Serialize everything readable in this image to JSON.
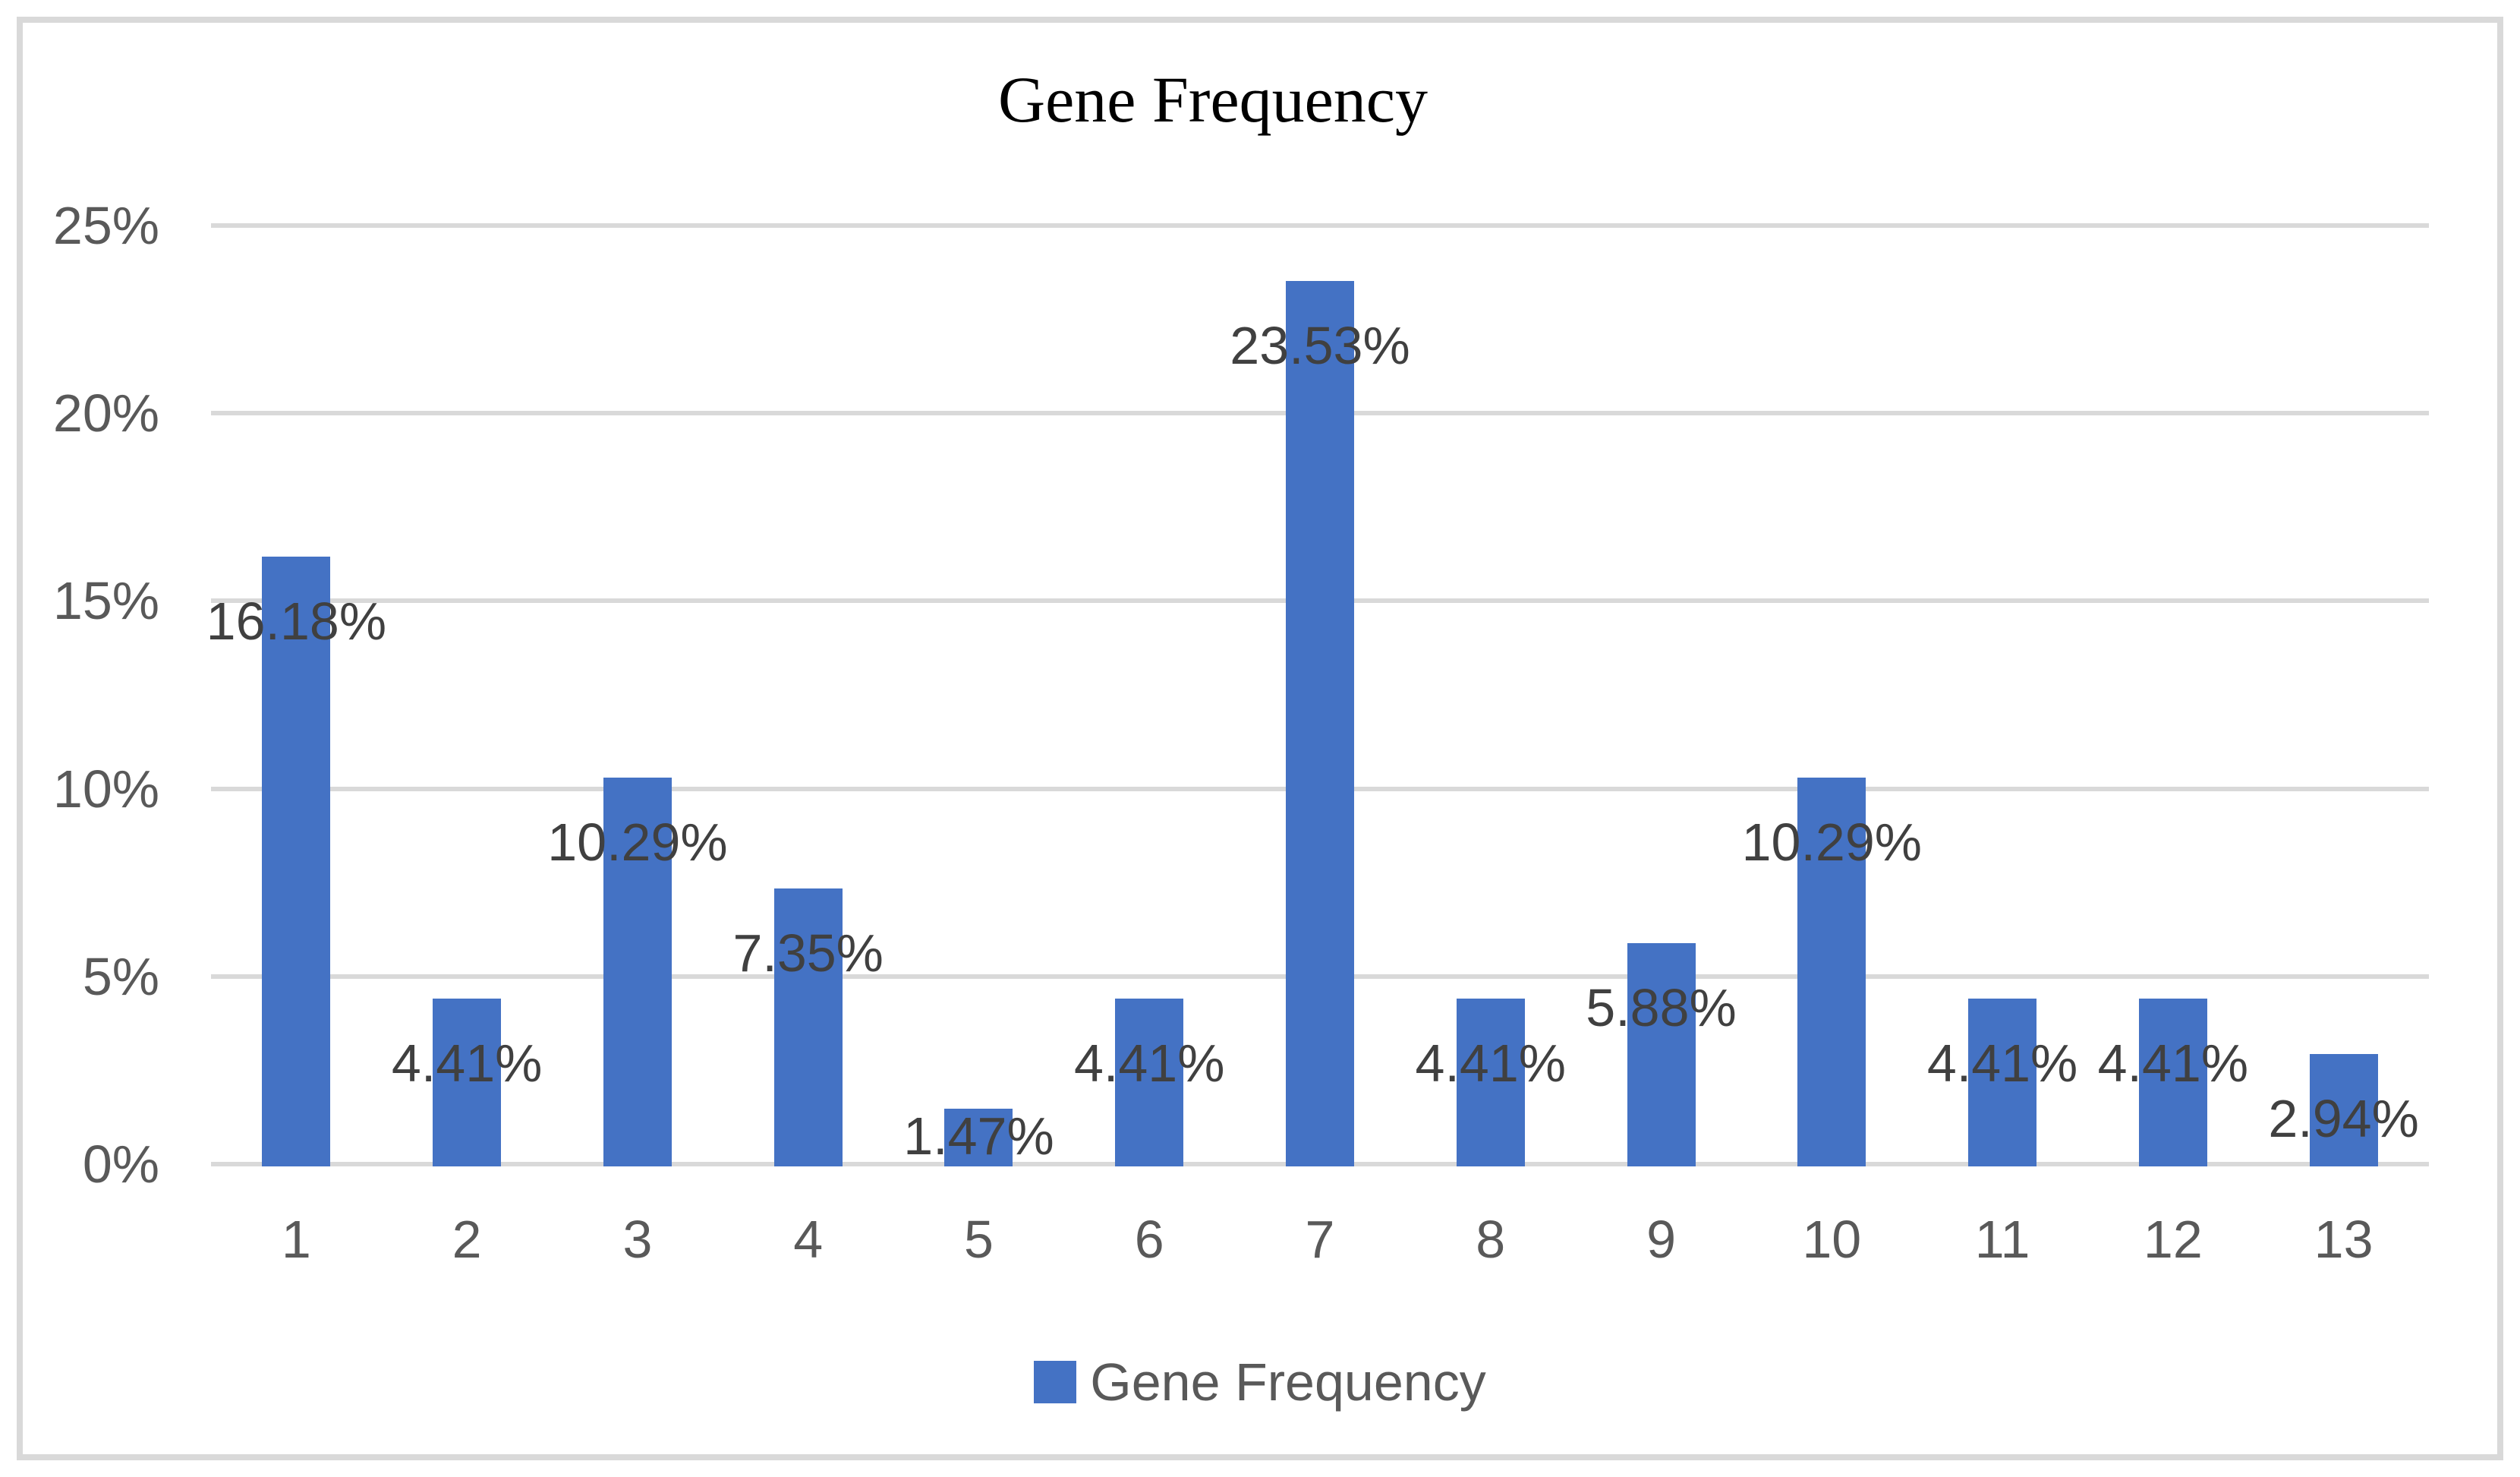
{
  "chart": {
    "title": "Gene Frequency",
    "legend": {
      "label": "Gene Frequency",
      "marker": "square"
    }
  },
  "chart_data": {
    "type": "bar",
    "title": "Gene Frequency",
    "series_name": "Gene Frequency",
    "categories": [
      "1",
      "2",
      "3",
      "4",
      "5",
      "6",
      "7",
      "8",
      "9",
      "10",
      "11",
      "12",
      "13"
    ],
    "values": [
      16.18,
      4.41,
      10.29,
      7.35,
      1.47,
      4.41,
      23.53,
      4.41,
      5.88,
      10.29,
      4.41,
      4.41,
      2.94
    ],
    "data_labels": [
      "16.18%",
      "4.41%",
      "10.29%",
      "7.35%",
      "1.47%",
      "4.41%",
      "23.53%",
      "4.41%",
      "5.88%",
      "10.29%",
      "4.41%",
      "4.41%",
      "2.94%"
    ],
    "xlabel": "",
    "ylabel": "",
    "ylim": [
      0,
      25
    ],
    "ytick_step": 5,
    "ytick_labels": [
      "0%",
      "5%",
      "10%",
      "15%",
      "20%",
      "25%"
    ],
    "grid": true,
    "legend_position": "bottom",
    "colors": {
      "bar": "#4472c4",
      "gridline": "#d9d9d9",
      "border": "#d9d9d9",
      "axis_text": "#595959",
      "data_label_text": "#404040",
      "title_text": "#000000"
    }
  }
}
